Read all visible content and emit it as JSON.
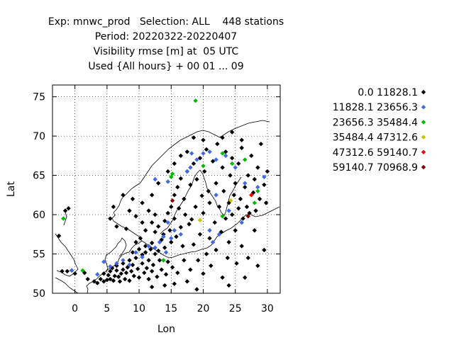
{
  "chart_data": {
    "type": "scatter",
    "title_lines": [
      "Exp: mnwc_prod   Selection: ALL    448 stations",
      "Period: 20220322-20220407",
      "Visibility rmse [m] at  05 UTC",
      "Used {All hours} + 00 01 ... 09"
    ],
    "xlabel": "Lon",
    "ylabel": "Lat",
    "xlim": [
      -3.5,
      32
    ],
    "ylim": [
      50,
      76.5
    ],
    "xticks": [
      0,
      5,
      10,
      15,
      20,
      25,
      30
    ],
    "yticks": [
      50,
      55,
      60,
      65,
      70,
      75
    ],
    "grid": true,
    "legend_position": "right",
    "series": [
      {
        "name": "0.0 11828.1",
        "color": "#000000",
        "points": [
          [
            -1.5,
            60.5
          ],
          [
            -1.0,
            60.8
          ],
          [
            -2.5,
            57.3
          ],
          [
            -2.0,
            52.8
          ],
          [
            -1.2,
            52.8
          ],
          [
            -0.5,
            52.9
          ],
          [
            0.0,
            52.5
          ],
          [
            1.5,
            52.6
          ],
          [
            2.0,
            51.8
          ],
          [
            3.0,
            51.5
          ],
          [
            3.5,
            51.3
          ],
          [
            4.0,
            51.8
          ],
          [
            4.5,
            51.5
          ],
          [
            4.5,
            52.5
          ],
          [
            5.0,
            51.7
          ],
          [
            5.2,
            52.3
          ],
          [
            5.5,
            51.8
          ],
          [
            5.5,
            52.8
          ],
          [
            5.8,
            53.2
          ],
          [
            6.0,
            51.6
          ],
          [
            6.2,
            52.2
          ],
          [
            6.5,
            52.9
          ],
          [
            6.5,
            53.5
          ],
          [
            6.8,
            52.1
          ],
          [
            7.0,
            51.5
          ],
          [
            7.2,
            52.5
          ],
          [
            7.5,
            53.0
          ],
          [
            7.5,
            53.8
          ],
          [
            7.8,
            51.8
          ],
          [
            8.0,
            52.6
          ],
          [
            8.2,
            53.3
          ],
          [
            8.5,
            51.6
          ],
          [
            8.5,
            54.2
          ],
          [
            8.8,
            52.8
          ],
          [
            9.0,
            53.6
          ],
          [
            9.0,
            55.2
          ],
          [
            9.2,
            52.2
          ],
          [
            9.5,
            54.5
          ],
          [
            9.5,
            56.5
          ],
          [
            9.8,
            53.1
          ],
          [
            10.0,
            52.0
          ],
          [
            10.0,
            55.6
          ],
          [
            10.2,
            57.0
          ],
          [
            10.5,
            53.8
          ],
          [
            10.5,
            54.9
          ],
          [
            10.8,
            52.6
          ],
          [
            11.0,
            56.0
          ],
          [
            11.0,
            55.2
          ],
          [
            11.2,
            53.2
          ],
          [
            11.5,
            51.8
          ],
          [
            11.5,
            54.2
          ],
          [
            11.8,
            55.6
          ],
          [
            12.0,
            52.8
          ],
          [
            12.0,
            56.4
          ],
          [
            12.2,
            53.6
          ],
          [
            12.5,
            55.0
          ],
          [
            12.5,
            57.8
          ],
          [
            12.8,
            52.1
          ],
          [
            13.0,
            55.4
          ],
          [
            13.0,
            58.5
          ],
          [
            13.2,
            54.2
          ],
          [
            13.5,
            53.0
          ],
          [
            13.5,
            56.8
          ],
          [
            13.8,
            57.5
          ],
          [
            14.0,
            55.8
          ],
          [
            14.0,
            59.2
          ],
          [
            14.2,
            52.4
          ],
          [
            14.5,
            54.0
          ],
          [
            14.5,
            60.2
          ],
          [
            14.8,
            58.0
          ],
          [
            15.0,
            56.5
          ],
          [
            15.0,
            61.0
          ],
          [
            15.2,
            53.3
          ],
          [
            15.5,
            59.5
          ],
          [
            15.5,
            62.5
          ],
          [
            15.8,
            57.2
          ],
          [
            16.0,
            52.6
          ],
          [
            16.0,
            63.5
          ],
          [
            16.2,
            60.8
          ],
          [
            16.5,
            58.4
          ],
          [
            16.5,
            64.6
          ],
          [
            16.8,
            56.0
          ],
          [
            17.0,
            62.0
          ],
          [
            17.0,
            54.2
          ],
          [
            17.2,
            60.0
          ],
          [
            17.5,
            65.5
          ],
          [
            17.8,
            58.8
          ],
          [
            18.0,
            53.0
          ],
          [
            18.0,
            63.8
          ],
          [
            18.2,
            59.4
          ],
          [
            18.5,
            66.5
          ],
          [
            18.5,
            56.2
          ],
          [
            18.8,
            61.0
          ],
          [
            19.0,
            64.5
          ],
          [
            19.2,
            54.2
          ],
          [
            19.5,
            67.2
          ],
          [
            19.5,
            57.5
          ],
          [
            19.8,
            62.4
          ],
          [
            20.0,
            52.5
          ],
          [
            20.0,
            60.2
          ],
          [
            20.2,
            65.5
          ],
          [
            20.5,
            55.0
          ],
          [
            20.5,
            68.3
          ],
          [
            20.8,
            63.0
          ],
          [
            21.0,
            57.0
          ],
          [
            21.0,
            61.5
          ],
          [
            21.2,
            53.5
          ],
          [
            21.5,
            66.8
          ],
          [
            21.8,
            59.0
          ],
          [
            22.0,
            55.5
          ],
          [
            22.0,
            64.0
          ],
          [
            22.2,
            69.0
          ],
          [
            22.5,
            61.0
          ],
          [
            22.8,
            57.8
          ],
          [
            23.0,
            52.0
          ],
          [
            23.0,
            66.0
          ],
          [
            23.2,
            63.0
          ],
          [
            23.5,
            59.5
          ],
          [
            23.5,
            68.0
          ],
          [
            23.8,
            54.5
          ],
          [
            24.0,
            61.5
          ],
          [
            24.0,
            56.5
          ],
          [
            24.2,
            65.0
          ],
          [
            24.5,
            60.0
          ],
          [
            24.5,
            67.2
          ],
          [
            24.8,
            62.5
          ],
          [
            25.0,
            58.0
          ],
          [
            25.0,
            64.0
          ],
          [
            25.2,
            53.8
          ],
          [
            25.5,
            60.8
          ],
          [
            25.5,
            66.5
          ],
          [
            25.8,
            62.0
          ],
          [
            26.0,
            56.0
          ],
          [
            26.0,
            68.5
          ],
          [
            26.2,
            59.5
          ],
          [
            26.5,
            63.5
          ],
          [
            26.8,
            61.0
          ],
          [
            27.0,
            65.0
          ],
          [
            27.0,
            54.5
          ],
          [
            27.2,
            60.2
          ],
          [
            27.5,
            67.5
          ],
          [
            27.8,
            62.8
          ],
          [
            28.0,
            58.0
          ],
          [
            28.0,
            64.5
          ],
          [
            28.2,
            60.5
          ],
          [
            28.5,
            66.0
          ],
          [
            28.8,
            62.0
          ],
          [
            29.0,
            69.0
          ],
          [
            29.5,
            63.8
          ],
          [
            29.8,
            61.5
          ],
          [
            30.0,
            65.5
          ],
          [
            26.0,
            69.5
          ],
          [
            24.5,
            70.5
          ],
          [
            23.0,
            69.8
          ],
          [
            20.0,
            69.5
          ],
          [
            18.5,
            69.8
          ],
          [
            12.0,
            50.8
          ],
          [
            14.0,
            51.0
          ],
          [
            15.5,
            51.2
          ],
          [
            17.5,
            51.5
          ],
          [
            19.0,
            50.5
          ],
          [
            24.0,
            51.0
          ],
          [
            26.5,
            52.0
          ],
          [
            28.5,
            53.5
          ],
          [
            29.5,
            55.5
          ],
          [
            10.5,
            59.0
          ],
          [
            9.5,
            59.8
          ],
          [
            8.5,
            60.5
          ],
          [
            8.0,
            58.2
          ],
          [
            6.5,
            58.5
          ],
          [
            5.5,
            59.5
          ],
          [
            6.0,
            61.0
          ],
          [
            7.5,
            62.5
          ],
          [
            9.0,
            62.0
          ],
          [
            10.5,
            61.5
          ],
          [
            11.5,
            60.5
          ],
          [
            12.0,
            62.5
          ],
          [
            13.0,
            64.0
          ],
          [
            14.5,
            65.5
          ],
          [
            15.5,
            66.5
          ],
          [
            16.5,
            67.5
          ],
          [
            17.5,
            68.0
          ],
          [
            12.5,
            60.0
          ],
          [
            12.0,
            59.0
          ],
          [
            11.0,
            58.0
          ]
        ]
      },
      {
        "name": "11828.1 23656.3",
        "color": "#4169e1",
        "points": [
          [
            -0.5,
            52.9
          ],
          [
            3.5,
            52.4
          ],
          [
            4.5,
            54.0
          ],
          [
            5.5,
            53.4
          ],
          [
            6.5,
            53.8
          ],
          [
            7.5,
            54.2
          ],
          [
            8.5,
            53.6
          ],
          [
            9.5,
            55.2
          ],
          [
            10.5,
            54.6
          ],
          [
            11.5,
            56.0
          ],
          [
            12.5,
            55.8
          ],
          [
            13.2,
            56.5
          ],
          [
            13.8,
            57.2
          ],
          [
            14.2,
            55.2
          ],
          [
            15.0,
            57.0
          ],
          [
            15.5,
            58.0
          ],
          [
            16.5,
            57.5
          ],
          [
            14.5,
            59.0
          ],
          [
            12.5,
            64.5
          ],
          [
            14.5,
            64.2
          ],
          [
            17.5,
            65.5
          ],
          [
            18.0,
            66.0
          ],
          [
            19.0,
            67.0
          ],
          [
            20.0,
            67.8
          ],
          [
            21.0,
            68.0
          ],
          [
            22.0,
            67.0
          ],
          [
            23.5,
            67.5
          ],
          [
            25.0,
            66.0
          ],
          [
            26.5,
            64.0
          ],
          [
            28.5,
            63.5
          ],
          [
            29.5,
            64.8
          ],
          [
            22.0,
            62.5
          ],
          [
            24.0,
            60.5
          ],
          [
            26.0,
            59.0
          ],
          [
            21.5,
            56.5
          ],
          [
            22.5,
            57.5
          ],
          [
            21.0,
            58.0
          ],
          [
            18.2,
            67.8
          ]
        ]
      },
      {
        "name": "23656.3 35484.4",
        "color": "#00bb00",
        "points": [
          [
            -1.8,
            59.5
          ],
          [
            1.2,
            52.9
          ],
          [
            18.8,
            74.5
          ],
          [
            15.0,
            64.8
          ],
          [
            15.2,
            65.2
          ],
          [
            20.0,
            66.2
          ],
          [
            23.0,
            67.8
          ],
          [
            24.5,
            66.5
          ],
          [
            26.5,
            67.0
          ],
          [
            28.5,
            63.0
          ],
          [
            28.0,
            61.5
          ],
          [
            23.0,
            59.8
          ],
          [
            13.8,
            54.2
          ]
        ]
      },
      {
        "name": "35484.4 47312.6",
        "color": "#c8c800",
        "points": [
          [
            19.5,
            59.3
          ],
          [
            24.3,
            61.8
          ]
        ]
      },
      {
        "name": "47312.6 59140.7",
        "color": "#ff0000",
        "points": [
          [
            27.5,
            62.5
          ]
        ]
      },
      {
        "name": "59140.7 70968.9",
        "color": "#8b0000",
        "points": [
          [
            15.2,
            61.8
          ],
          [
            27.0,
            59.8
          ]
        ]
      }
    ]
  }
}
